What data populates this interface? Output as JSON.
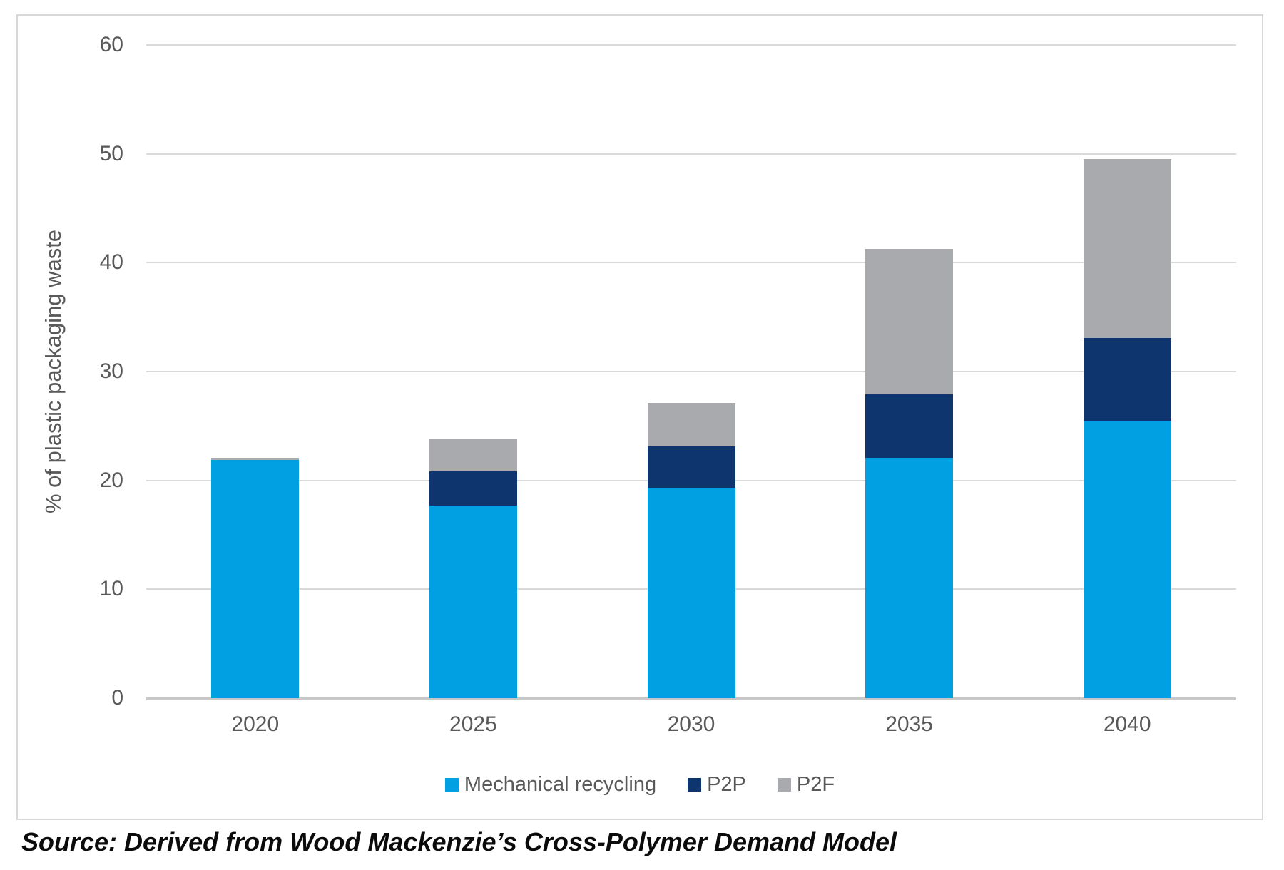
{
  "source_note": "Source: Derived from Wood Mackenzie’s Cross-Polymer Demand Model",
  "colors": {
    "mechanical": "#00a0e2",
    "p2p": "#0f356f",
    "p2f": "#a9aaad",
    "gridline": "#d9d9d9",
    "axis_line": "#c7c7c7",
    "tick_text": "#595959",
    "frame_border": "#d8d8d8",
    "source_text": "#0b0b0b"
  },
  "chart_data": {
    "type": "bar",
    "stacked": true,
    "title": "",
    "xlabel": "",
    "ylabel": "% of plastic packaging waste",
    "categories": [
      "2020",
      "2025",
      "2030",
      "2035",
      "2040"
    ],
    "series": [
      {
        "name": "Mechanical recycling",
        "color": "#00a0e2",
        "values": [
          21.9,
          17.7,
          19.3,
          22.1,
          25.5
        ]
      },
      {
        "name": "P2P",
        "color": "#0f356f",
        "values": [
          0.0,
          3.1,
          3.8,
          5.8,
          7.6
        ]
      },
      {
        "name": "P2F",
        "color": "#a9aaad",
        "values": [
          0.2,
          3.0,
          4.0,
          13.4,
          16.4
        ]
      }
    ],
    "totals": [
      22.1,
      23.8,
      27.1,
      41.3,
      49.5
    ],
    "ylim": [
      0,
      60
    ],
    "ytick_step": 10,
    "yticks": [
      0,
      10,
      20,
      30,
      40,
      50,
      60
    ],
    "grid": true,
    "legend_position": "bottom"
  }
}
